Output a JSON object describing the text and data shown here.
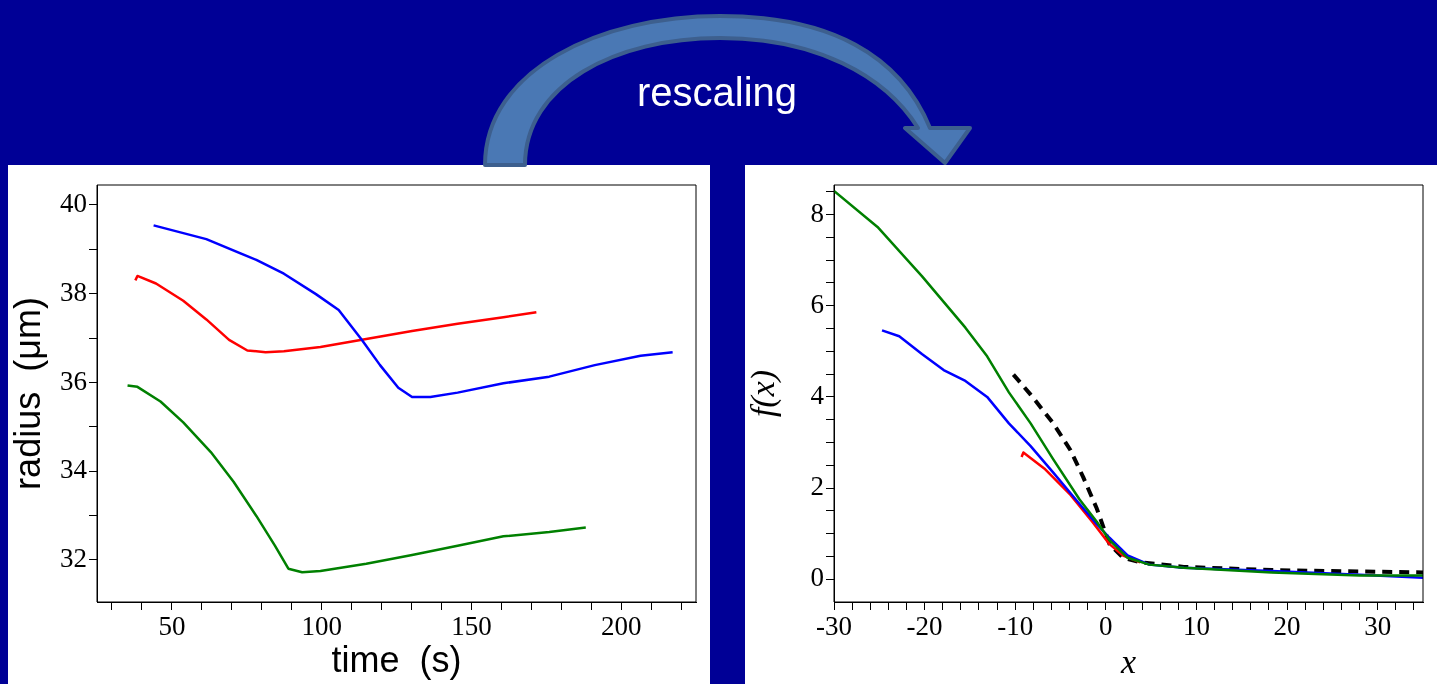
{
  "chart_data": [
    {
      "type": "line",
      "xlabel": "time  (s)",
      "ylabel": "radius  (μm)",
      "annotations": [
        "rescaling"
      ],
      "xlim": [
        25,
        225
      ],
      "ylim": [
        31.05,
        40.45
      ],
      "xticks": [
        {
          "value": 30,
          "label": null
        },
        {
          "value": 40,
          "label": null
        },
        50,
        {
          "value": 60,
          "label": null
        },
        {
          "value": 70,
          "label": null
        },
        {
          "value": 80,
          "label": null
        },
        {
          "value": 90,
          "label": null
        },
        100,
        {
          "value": 110,
          "label": null
        },
        {
          "value": 120,
          "label": null
        },
        {
          "value": 130,
          "label": null
        },
        {
          "value": 140,
          "label": null
        },
        150,
        {
          "value": 160,
          "label": null
        },
        {
          "value": 170,
          "label": null
        },
        {
          "value": 180,
          "label": null
        },
        {
          "value": 190,
          "label": null
        },
        200,
        {
          "value": 210,
          "label": null
        },
        {
          "value": 220,
          "label": null
        }
      ],
      "yticks": [
        32,
        {
          "value": 33,
          "label": null
        },
        34,
        {
          "value": 35,
          "label": null
        },
        36,
        {
          "value": 37,
          "label": null
        },
        38,
        {
          "value": 39,
          "label": null
        },
        40
      ],
      "grid": false,
      "legend": false,
      "marker": "none",
      "line_style": "solid",
      "series": [
        {
          "color": "#0000ff",
          "x": [
            43.9,
            61.5,
            78.2,
            87.4,
            98.1,
            105.7,
            113.4,
            119.5,
            125.6,
            130.2,
            136.3,
            145.4,
            160.7,
            176,
            191.2,
            206.5,
            217.2
          ],
          "values": [
            39.54,
            39.23,
            38.76,
            38.45,
            37.99,
            37.63,
            36.96,
            36.39,
            35.88,
            35.67,
            35.67,
            35.77,
            35.98,
            36.13,
            36.39,
            36.6,
            36.68
          ]
        },
        {
          "color": "#ff0000",
          "x": [
            37.8,
            38.5,
            44.7,
            53.8,
            61.5,
            69.1,
            75.2,
            81.3,
            87.4,
            99.6,
            114.9,
            130.2,
            145.4,
            160.7,
            171.7
          ],
          "values": [
            38.3,
            38.4,
            38.23,
            37.84,
            37.42,
            36.96,
            36.72,
            36.68,
            36.7,
            36.8,
            36.98,
            37.16,
            37.32,
            37.47,
            37.58
          ]
        },
        {
          "color": "#008000",
          "x": [
            35.2,
            38.5,
            46.2,
            53.8,
            63,
            70.6,
            78.2,
            84.4,
            88.9,
            93.5,
            99.6,
            114.9,
            130.2,
            145.4,
            160.7,
            176,
            188.2
          ],
          "values": [
            35.93,
            35.9,
            35.57,
            35.1,
            34.43,
            33.76,
            32.99,
            32.32,
            31.8,
            31.72,
            31.75,
            31.91,
            32.11,
            32.32,
            32.53,
            32.63,
            32.73
          ]
        }
      ]
    },
    {
      "type": "line",
      "xlabel": "x",
      "ylabel": "f(x)",
      "xlim": [
        -30,
        35
      ],
      "ylim": [
        -0.5,
        8.65
      ],
      "xticks": [
        -30,
        {
          "value": -28,
          "label": null
        },
        {
          "value": -26,
          "label": null
        },
        {
          "value": -24,
          "label": null
        },
        {
          "value": -22,
          "label": null
        },
        -20,
        {
          "value": -18,
          "label": null
        },
        {
          "value": -16,
          "label": null
        },
        {
          "value": -14,
          "label": null
        },
        {
          "value": -12,
          "label": null
        },
        -10,
        {
          "value": -8,
          "label": null
        },
        {
          "value": -6,
          "label": null
        },
        {
          "value": -4,
          "label": null
        },
        {
          "value": -2,
          "label": null
        },
        0,
        {
          "value": 2,
          "label": null
        },
        {
          "value": 4,
          "label": null
        },
        {
          "value": 6,
          "label": null
        },
        {
          "value": 8,
          "label": null
        },
        10,
        {
          "value": 12,
          "label": null
        },
        {
          "value": 14,
          "label": null
        },
        {
          "value": 16,
          "label": null
        },
        {
          "value": 18,
          "label": null
        },
        20,
        {
          "value": 22,
          "label": null
        },
        {
          "value": 24,
          "label": null
        },
        {
          "value": 26,
          "label": null
        },
        {
          "value": 28,
          "label": null
        },
        30,
        {
          "value": 32,
          "label": null
        },
        {
          "value": 34,
          "label": null
        }
      ],
      "yticks": [
        0,
        {
          "value": 0.5,
          "label": null
        },
        {
          "value": 1,
          "label": null
        },
        {
          "value": 1.5,
          "label": null
        },
        2,
        {
          "value": 2.5,
          "label": null
        },
        {
          "value": 3,
          "label": null
        },
        {
          "value": 3.5,
          "label": null
        },
        4,
        {
          "value": 4.5,
          "label": null
        },
        {
          "value": 5,
          "label": null
        },
        {
          "value": 5.5,
          "label": null
        },
        6,
        {
          "value": 6.5,
          "label": null
        },
        {
          "value": 7,
          "label": null
        },
        {
          "value": 7.5,
          "label": null
        },
        8,
        {
          "value": 8.5,
          "label": null
        }
      ],
      "grid": false,
      "legend": false,
      "marker": "none",
      "line_style": "solid",
      "series": [
        {
          "color": "#008000",
          "x": [
            -30,
            -25.2,
            -20.3,
            -15.5,
            -13.1,
            -10.7,
            -8.3,
            -5.8,
            -2.9,
            -1,
            0.4,
            2.4,
            4.8,
            8.6,
            18.3,
            28,
            35
          ],
          "values": [
            8.52,
            7.73,
            6.65,
            5.52,
            4.89,
            4.1,
            3.42,
            2.63,
            1.75,
            1.26,
            0.86,
            0.47,
            0.32,
            0.25,
            0.15,
            0.08,
            0.08
          ]
        },
        {
          "color": "#0000ff",
          "x": [
            -24.7,
            -22.8,
            -20.3,
            -17.9,
            -15.5,
            -13.1,
            -10.7,
            -8.3,
            -5.8,
            -2.9,
            -1,
            0.4,
            2.4,
            4.8,
            8.6,
            18.3,
            28,
            35
          ],
          "values": [
            5.46,
            5.33,
            4.94,
            4.59,
            4.35,
            4,
            3.42,
            2.92,
            2.34,
            1.65,
            1.21,
            0.91,
            0.52,
            0.32,
            0.25,
            0.18,
            0.1,
            0.03
          ]
        },
        {
          "color": "#ff0000",
          "x": [
            -9.3,
            -9.1,
            -6.8,
            -3.9,
            -1.5,
            0.4,
            1.9,
            3.8
          ],
          "values": [
            2.68,
            2.78,
            2.43,
            1.85,
            1.26,
            0.77,
            0.52,
            0.37
          ]
        },
        {
          "color": "#000000",
          "line_style": "dashed",
          "x": [
            -10.2,
            -8.3,
            -5.8,
            -3.9,
            -2.5,
            -1,
            -0.3,
            0.4,
            1.9,
            3.8,
            8.6,
            18.3,
            35
          ],
          "values": [
            4.49,
            4.05,
            3.42,
            2.83,
            2.24,
            1.55,
            1.16,
            0.77,
            0.47,
            0.37,
            0.27,
            0.2,
            0.15
          ]
        }
      ]
    }
  ]
}
